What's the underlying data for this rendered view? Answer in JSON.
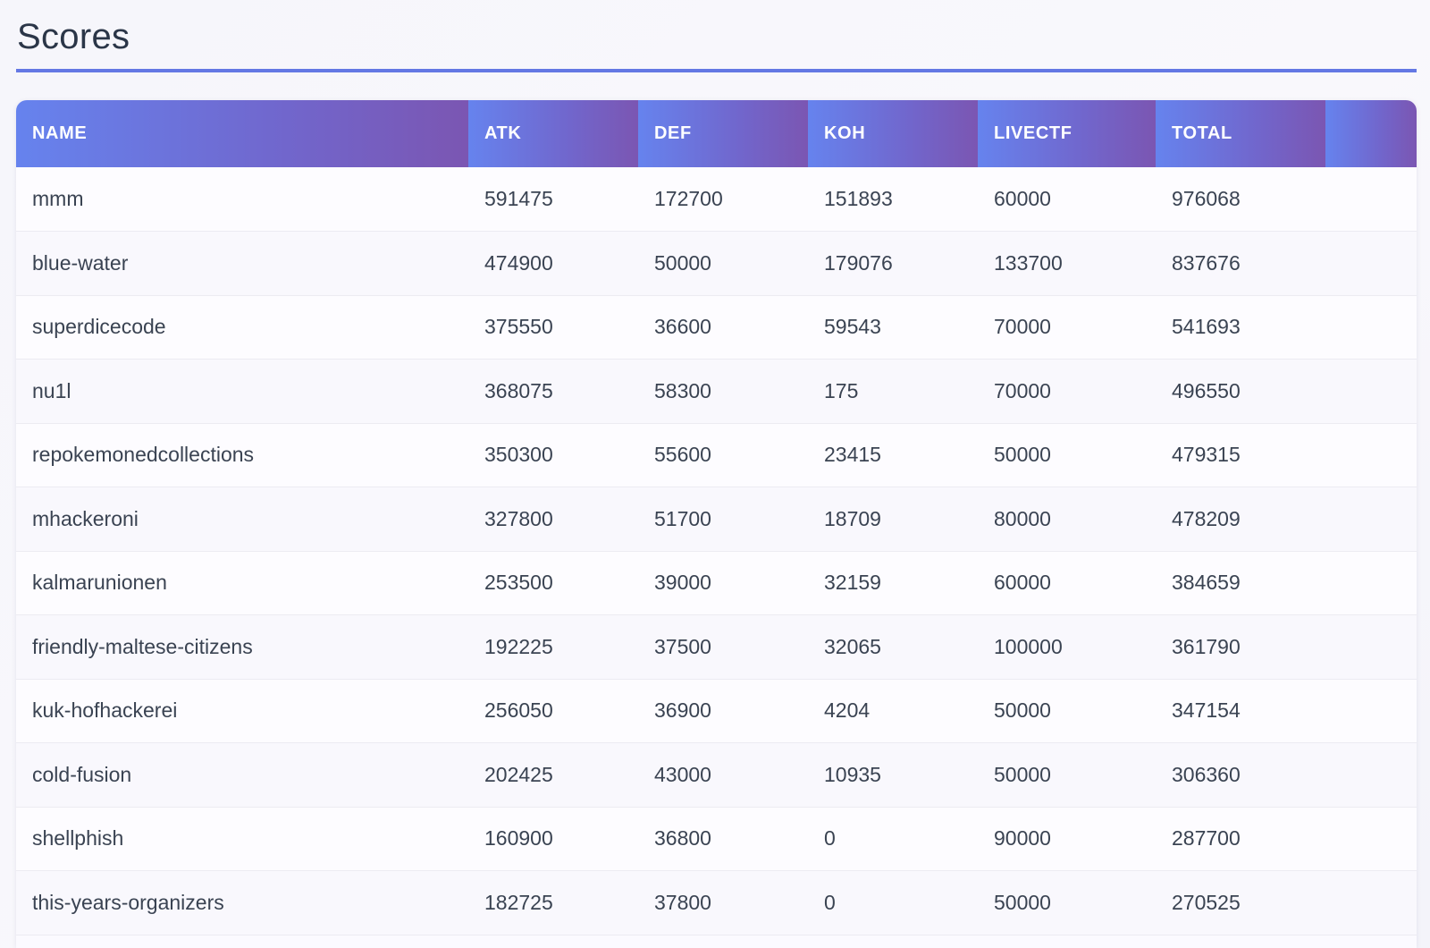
{
  "page": {
    "title": "Scores"
  },
  "colors": {
    "accent": "#6478e4",
    "header_start": "#6683ee",
    "header_end": "#7b56b2"
  },
  "table": {
    "headers": {
      "name": "NAME",
      "atk": "ATK",
      "def": "DEF",
      "koh": "KOH",
      "livectf": "LIVECTF",
      "total": "TOTAL"
    },
    "rows": [
      {
        "name": "mmm",
        "atk": "591475",
        "def": "172700",
        "koh": "151893",
        "livectf": "60000",
        "total": "976068"
      },
      {
        "name": "blue-water",
        "atk": "474900",
        "def": "50000",
        "koh": "179076",
        "livectf": "133700",
        "total": "837676"
      },
      {
        "name": "superdicecode",
        "atk": "375550",
        "def": "36600",
        "koh": "59543",
        "livectf": "70000",
        "total": "541693"
      },
      {
        "name": "nu1l",
        "atk": "368075",
        "def": "58300",
        "koh": "175",
        "livectf": "70000",
        "total": "496550"
      },
      {
        "name": "repokemonedcollections",
        "atk": "350300",
        "def": "55600",
        "koh": "23415",
        "livectf": "50000",
        "total": "479315"
      },
      {
        "name": "mhackeroni",
        "atk": "327800",
        "def": "51700",
        "koh": "18709",
        "livectf": "80000",
        "total": "478209"
      },
      {
        "name": "kalmarunionen",
        "atk": "253500",
        "def": "39000",
        "koh": "32159",
        "livectf": "60000",
        "total": "384659"
      },
      {
        "name": "friendly-maltese-citizens",
        "atk": "192225",
        "def": "37500",
        "koh": "32065",
        "livectf": "100000",
        "total": "361790"
      },
      {
        "name": "kuk-hofhackerei",
        "atk": "256050",
        "def": "36900",
        "koh": "4204",
        "livectf": "50000",
        "total": "347154"
      },
      {
        "name": "cold-fusion",
        "atk": "202425",
        "def": "43000",
        "koh": "10935",
        "livectf": "50000",
        "total": "306360"
      },
      {
        "name": "shellphish",
        "atk": "160900",
        "def": "36800",
        "koh": "0",
        "livectf": "90000",
        "total": "287700"
      },
      {
        "name": "this-years-organizers",
        "atk": "182725",
        "def": "37800",
        "koh": "0",
        "livectf": "50000",
        "total": "270525"
      }
    ]
  }
}
